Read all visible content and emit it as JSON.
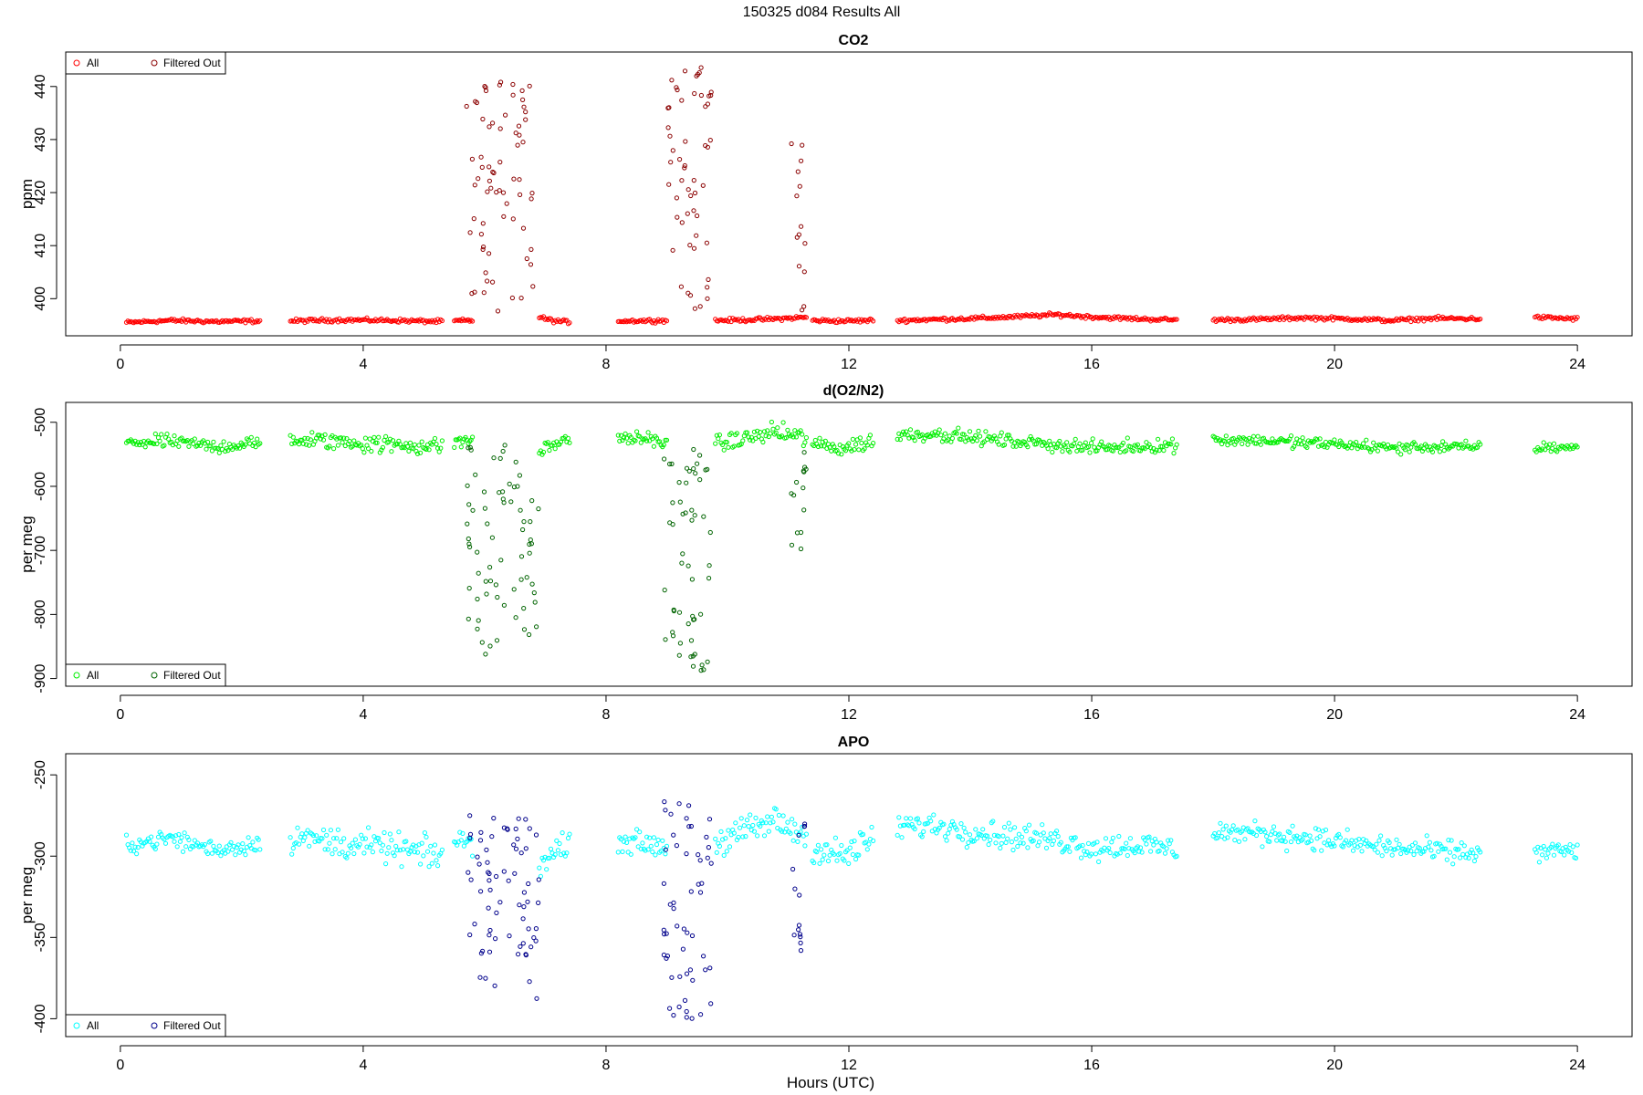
{
  "figure": {
    "title": "150325   d084   Results All",
    "xlabel": "Hours (UTC)"
  },
  "chart_data": [
    {
      "type": "scatter",
      "title": "CO2",
      "xlabel": "",
      "ylabel": "ppm",
      "xlim": [
        -0.9,
        24.9
      ],
      "ylim": [
        393,
        446.5
      ],
      "xticks": [
        0,
        4,
        8,
        12,
        16,
        20,
        24
      ],
      "yticks": [
        400,
        410,
        420,
        430,
        440
      ],
      "grid": false,
      "legend_position": "top-left",
      "colors": {
        "all": "#ff0000",
        "filtered": "#8b0000"
      },
      "series": [
        {
          "name": "All",
          "marker": "open-circle",
          "segments": [
            {
              "x_range": [
                0.1,
                2.3
              ],
              "base": [
                395.5,
                395.9,
                395.7,
                395.8
              ],
              "noise": 0.3
            },
            {
              "x_range": [
                2.8,
                5.3
              ],
              "base": [
                395.8,
                396.0,
                395.9,
                395.7
              ],
              "noise": 0.3
            },
            {
              "x_range": [
                5.5,
                5.8
              ],
              "base": [
                395.8,
                395.9
              ],
              "noise": 0.3
            },
            {
              "x_range": [
                6.9,
                7.4
              ],
              "base": [
                396.5,
                395.8,
                395.6
              ],
              "noise": 0.3
            },
            {
              "x_range": [
                8.2,
                9.0
              ],
              "base": [
                395.8,
                395.9
              ],
              "noise": 0.3
            },
            {
              "x_range": [
                9.8,
                11.3
              ],
              "base": [
                395.9,
                396.0,
                396.2,
                396.5
              ],
              "noise": 0.3
            },
            {
              "x_range": [
                11.4,
                12.4
              ],
              "base": [
                395.9,
                395.8,
                395.9
              ],
              "noise": 0.3
            },
            {
              "x_range": [
                12.8,
                17.4
              ],
              "base": [
                395.9,
                396.1,
                396.3,
                396.6,
                397.0,
                396.5,
                396.2,
                396.0
              ],
              "noise": 0.3
            },
            {
              "x_range": [
                18.0,
                22.4
              ],
              "base": [
                396.0,
                396.1,
                396.4,
                396.2,
                395.9,
                396.3,
                396.2
              ],
              "noise": 0.3
            },
            {
              "x_range": [
                23.3,
                24.0
              ],
              "base": [
                396.5,
                396.2
              ],
              "noise": 0.3
            }
          ]
        },
        {
          "name": "Filtered Out",
          "marker": "open-circle",
          "bursts": [
            {
              "x_range": [
                5.7,
                6.8
              ],
              "y_range": [
                396,
                441
              ],
              "count": 70
            },
            {
              "x_range": [
                8.95,
                9.75
              ],
              "y_range": [
                396,
                444.5
              ],
              "count": 55
            },
            {
              "x_range": [
                11.05,
                11.3
              ],
              "y_range": [
                397,
                430.5
              ],
              "count": 14
            }
          ]
        }
      ]
    },
    {
      "type": "scatter",
      "title": "d(O2/N2)",
      "xlabel": "",
      "ylabel": "per meg",
      "xlim": [
        -0.9,
        24.9
      ],
      "ylim": [
        -912,
        -469
      ],
      "xticks": [
        0,
        4,
        8,
        12,
        16,
        20,
        24
      ],
      "yticks": [
        -500,
        -600,
        -700,
        -800,
        -900
      ],
      "grid": false,
      "legend_position": "bottom-left",
      "colors": {
        "all": "#00ee00",
        "filtered": "#006400"
      },
      "series": [
        {
          "name": "All",
          "marker": "open-circle",
          "segments": [
            {
              "x_range": [
                0.1,
                2.3
              ],
              "base": [
                -532,
                -530,
                -538,
                -533
              ],
              "noise": 9
            },
            {
              "x_range": [
                2.8,
                5.3
              ],
              "base": [
                -527,
                -530,
                -535,
                -538
              ],
              "noise": 12
            },
            {
              "x_range": [
                5.5,
                5.8
              ],
              "base": [
                -530,
                -528
              ],
              "noise": 9
            },
            {
              "x_range": [
                6.9,
                7.4
              ],
              "base": [
                -545,
                -535,
                -525
              ],
              "noise": 9
            },
            {
              "x_range": [
                8.2,
                9.0
              ],
              "base": [
                -523,
                -530
              ],
              "noise": 9
            },
            {
              "x_range": [
                9.8,
                11.3
              ],
              "base": [
                -535,
                -525,
                -515,
                -525
              ],
              "noise": 12
            },
            {
              "x_range": [
                11.4,
                12.4
              ],
              "base": [
                -535,
                -540,
                -530
              ],
              "noise": 12
            },
            {
              "x_range": [
                12.8,
                17.4
              ],
              "base": [
                -520,
                -518,
                -525,
                -530,
                -535,
                -540,
                -538,
                -535
              ],
              "noise": 9
            },
            {
              "x_range": [
                18.0,
                22.4
              ],
              "base": [
                -527,
                -528,
                -532,
                -535,
                -540,
                -538,
                -540
              ],
              "noise": 8
            },
            {
              "x_range": [
                23.3,
                24.0
              ],
              "base": [
                -540,
                -538
              ],
              "noise": 7
            }
          ]
        },
        {
          "name": "Filtered Out",
          "marker": "open-circle",
          "bursts": [
            {
              "x_range": [
                5.7,
                6.9
              ],
              "y_range": [
                -865,
                -535
              ],
              "count": 70
            },
            {
              "x_range": [
                8.95,
                9.75
              ],
              "y_range": [
                -900,
                -540
              ],
              "count": 55
            },
            {
              "x_range": [
                11.05,
                11.3
              ],
              "y_range": [
                -757,
                -535
              ],
              "count": 14
            }
          ]
        }
      ]
    },
    {
      "type": "scatter",
      "title": "APO",
      "xlabel": "Hours (UTC)",
      "ylabel": "per meg",
      "xlim": [
        -0.9,
        24.9
      ],
      "ylim": [
        -411,
        -237
      ],
      "xticks": [
        0,
        4,
        8,
        12,
        16,
        20,
        24
      ],
      "yticks": [
        -250,
        -300,
        -350,
        -400
      ],
      "grid": false,
      "legend_position": "bottom-left",
      "colors": {
        "all": "#00ffff",
        "filtered": "#00008b"
      },
      "series": [
        {
          "name": "All",
          "marker": "open-circle",
          "segments": [
            {
              "x_range": [
                0.1,
                2.3
              ],
              "base": [
                -293,
                -289,
                -296,
                -292
              ],
              "noise": 5
            },
            {
              "x_range": [
                2.8,
                5.3
              ],
              "base": [
                -288,
                -292,
                -295,
                -300
              ],
              "noise": 8
            },
            {
              "x_range": [
                5.5,
                5.8
              ],
              "base": [
                -290,
                -292
              ],
              "noise": 6
            },
            {
              "x_range": [
                6.9,
                7.4
              ],
              "base": [
                -305,
                -298,
                -290
              ],
              "noise": 6
            },
            {
              "x_range": [
                8.2,
                9.0
              ],
              "base": [
                -290,
                -294
              ],
              "noise": 6
            },
            {
              "x_range": [
                9.8,
                11.3
              ],
              "base": [
                -292,
                -285,
                -278,
                -288
              ],
              "noise": 8
            },
            {
              "x_range": [
                11.4,
                12.4
              ],
              "base": [
                -295,
                -300,
                -290
              ],
              "noise": 8
            },
            {
              "x_range": [
                12.8,
                17.4
              ],
              "base": [
                -282,
                -281,
                -285,
                -288,
                -290,
                -295,
                -293,
                -296
              ],
              "noise": 7
            },
            {
              "x_range": [
                18.0,
                22.4
              ],
              "base": [
                -285,
                -286,
                -288,
                -292,
                -295,
                -297,
                -298
              ],
              "noise": 6
            },
            {
              "x_range": [
                23.3,
                24.0
              ],
              "base": [
                -298,
                -296
              ],
              "noise": 5
            }
          ]
        },
        {
          "name": "Filtered Out",
          "marker": "open-circle",
          "bursts": [
            {
              "x_range": [
                5.7,
                6.9
              ],
              "y_range": [
                -388,
                -275
              ],
              "count": 70
            },
            {
              "x_range": [
                8.95,
                9.75
              ],
              "y_range": [
                -406,
                -265
              ],
              "count": 55
            },
            {
              "x_range": [
                11.05,
                11.3
              ],
              "y_range": [
                -360,
                -280
              ],
              "count": 14
            }
          ]
        }
      ]
    }
  ]
}
